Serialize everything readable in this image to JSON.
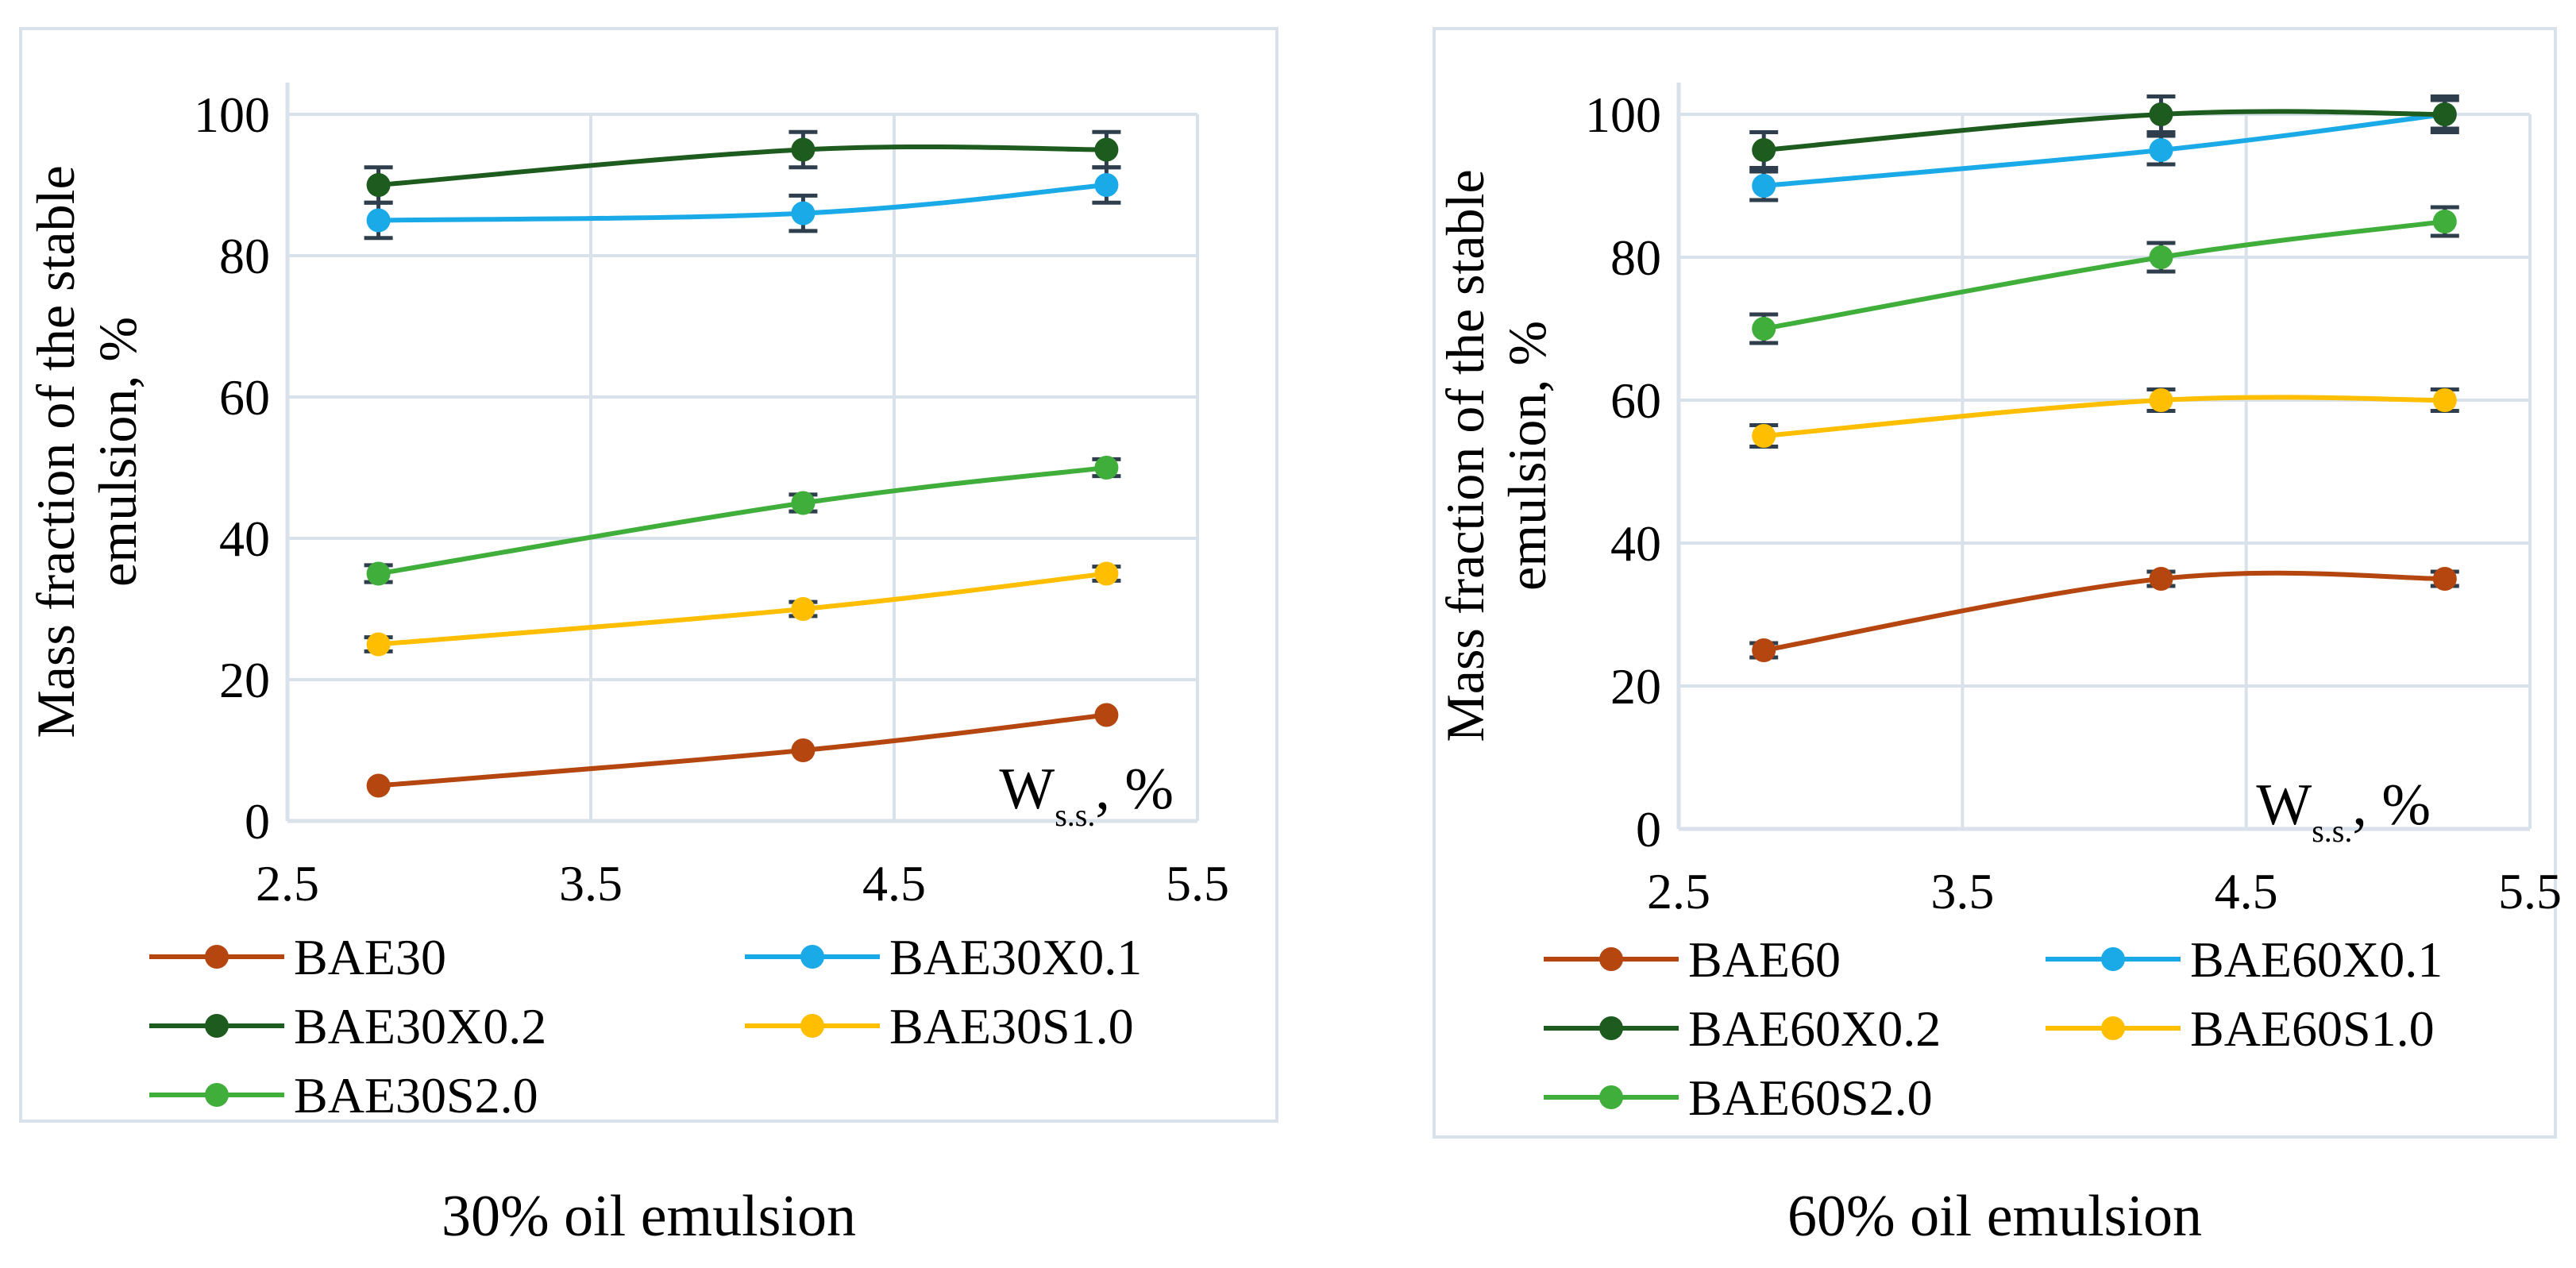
{
  "chart_data": [
    {
      "type": "line",
      "title": "30% oil emulsion",
      "ylabel_line1": "Mass fraction of the stable",
      "ylabel_line2": "emulsion, %",
      "xlabel_main": "W",
      "xlabel_sub": "s.s.",
      "xlabel_suffix": ", %",
      "xlim": [
        2.5,
        5.5
      ],
      "ylim": [
        0,
        100
      ],
      "xticks": [
        "2.5",
        "3.5",
        "4.5",
        "5.5"
      ],
      "yticks": [
        "0",
        "20",
        "40",
        "60",
        "80",
        "100"
      ],
      "x": [
        2.8,
        4.2,
        5.2
      ],
      "series": [
        {
          "name": "BAE30",
          "values": [
            5,
            10,
            15
          ],
          "color": "#b5460f",
          "err": [
            0,
            0,
            0
          ]
        },
        {
          "name": "BAE30X0.1",
          "values": [
            85,
            86,
            90
          ],
          "color": "#1aaae8",
          "err": [
            2.5,
            2.5,
            2.5
          ]
        },
        {
          "name": "BAE30X0.2",
          "values": [
            90,
            95,
            95
          ],
          "color": "#1e5b1e",
          "err": [
            2.5,
            2.5,
            2.5
          ]
        },
        {
          "name": "BAE30S1.0",
          "values": [
            25,
            30,
            35
          ],
          "color": "#ffbf00",
          "err": [
            1,
            1,
            1
          ]
        },
        {
          "name": "BAE30S2.0",
          "values": [
            35,
            45,
            50
          ],
          "color": "#3fae3a",
          "err": [
            1.2,
            1.2,
            1.2
          ]
        }
      ]
    },
    {
      "type": "line",
      "title": "60% oil emulsion",
      "ylabel_line1": "Mass fraction of the stable",
      "ylabel_line2": "emulsion, %",
      "xlabel_main": "W",
      "xlabel_sub": "s.s.",
      "xlabel_suffix": ", %",
      "xlim": [
        2.5,
        5.5
      ],
      "ylim": [
        0,
        100
      ],
      "xticks": [
        "2.5",
        "3.5",
        "4.5",
        "5.5"
      ],
      "yticks": [
        "0",
        "20",
        "40",
        "60",
        "80",
        "100"
      ],
      "x": [
        2.8,
        4.2,
        5.2
      ],
      "series": [
        {
          "name": "BAE60",
          "values": [
            25,
            35,
            35
          ],
          "color": "#b5460f",
          "err": [
            1,
            1,
            1
          ]
        },
        {
          "name": "BAE60X0.1",
          "values": [
            90,
            95,
            100
          ],
          "color": "#1aaae8",
          "err": [
            2,
            2,
            2
          ]
        },
        {
          "name": "BAE60X0.2",
          "values": [
            95,
            100,
            100
          ],
          "color": "#1e5b1e",
          "err": [
            2.5,
            2.5,
            2.5
          ]
        },
        {
          "name": "BAE60S1.0",
          "values": [
            55,
            60,
            60
          ],
          "color": "#ffbf00",
          "err": [
            1.5,
            1.5,
            1.5
          ]
        },
        {
          "name": "BAE60S2.0",
          "values": [
            70,
            80,
            85
          ],
          "color": "#3fae3a",
          "err": [
            2,
            2,
            2
          ]
        }
      ]
    }
  ]
}
